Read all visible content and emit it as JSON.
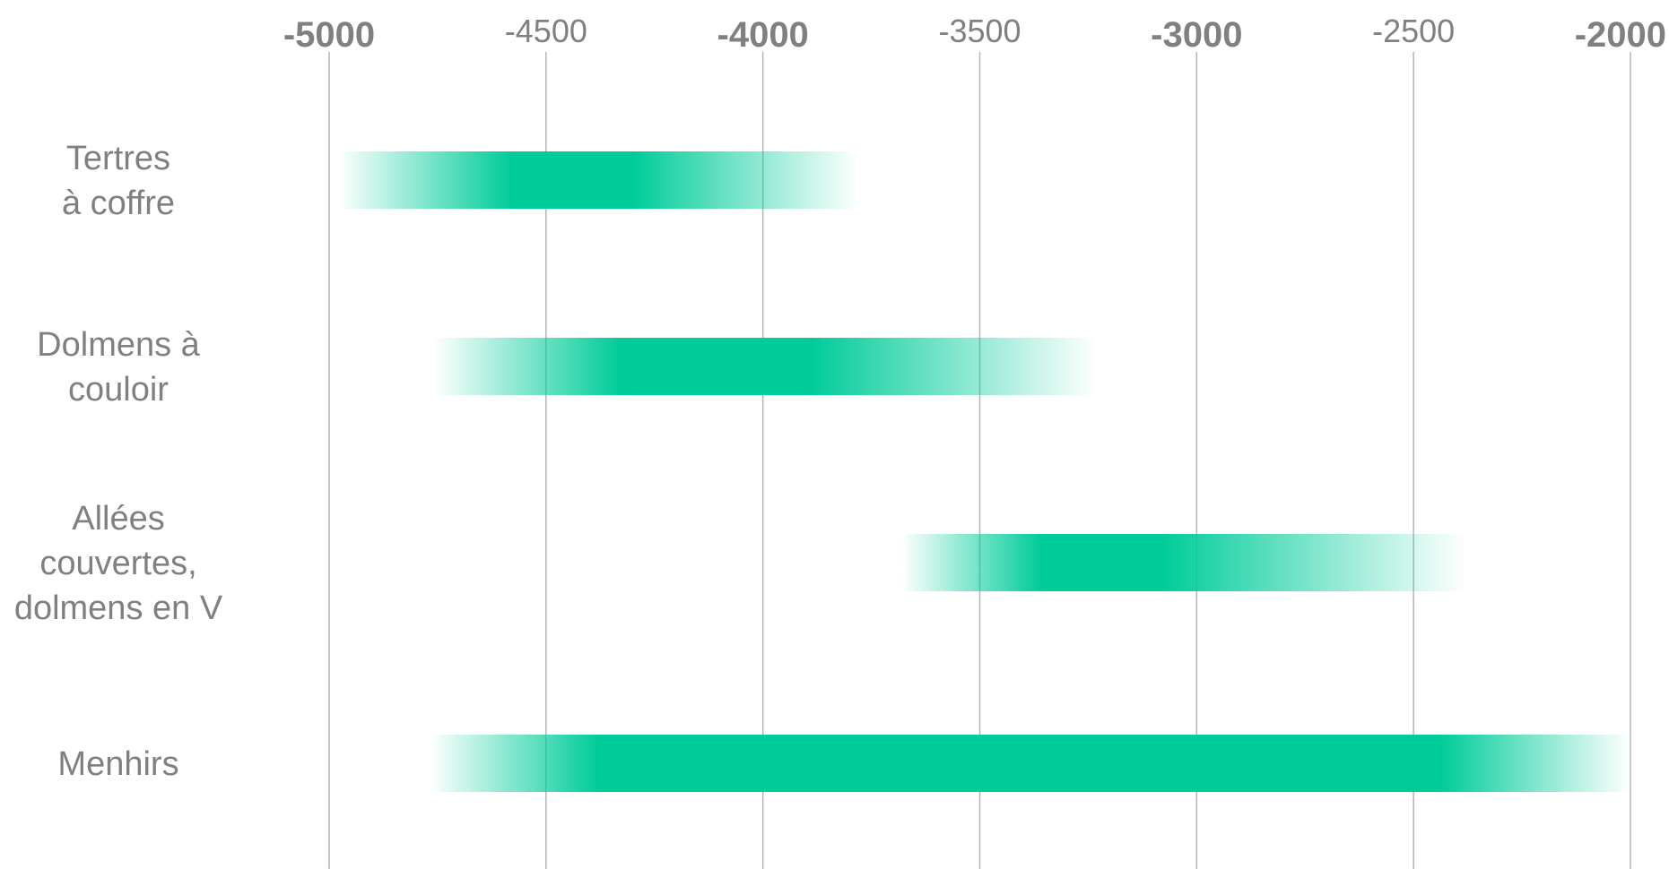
{
  "chart_data": {
    "type": "bar",
    "orientation": "horizontal",
    "bar_style": "range-with-fading-uncertainty",
    "color": "#00cc99",
    "xlim": [
      -5000,
      -2000
    ],
    "grid": "vertical",
    "x_ticks": [
      {
        "label": "-5000",
        "major": true
      },
      {
        "label": "-4500",
        "major": false
      },
      {
        "label": "-4000",
        "major": true
      },
      {
        "label": "-3500",
        "major": false
      },
      {
        "label": "-3000",
        "major": true
      },
      {
        "label": "-2500",
        "major": false
      },
      {
        "label": "-2000",
        "major": true
      }
    ],
    "categories": [
      {
        "label_lines": [
          "Tertres",
          "à coffre"
        ],
        "fade_start": -4980,
        "core_start": -4580,
        "core_end": -4300,
        "fade_end": -3780
      },
      {
        "label_lines": [
          "Dolmens à",
          "couloir"
        ],
        "fade_start": -4760,
        "core_start": -4330,
        "core_end": -3890,
        "fade_end": -3230
      },
      {
        "label_lines": [
          "Allées",
          "couvertes,",
          "dolmens en V"
        ],
        "fade_start": -3680,
        "core_start": -3360,
        "core_end": -3080,
        "fade_end": -2380
      },
      {
        "label_lines": [
          "Menhirs"
        ],
        "fade_start": -4770,
        "core_start": -4380,
        "core_end": -2440,
        "fade_end": -2000
      }
    ]
  }
}
